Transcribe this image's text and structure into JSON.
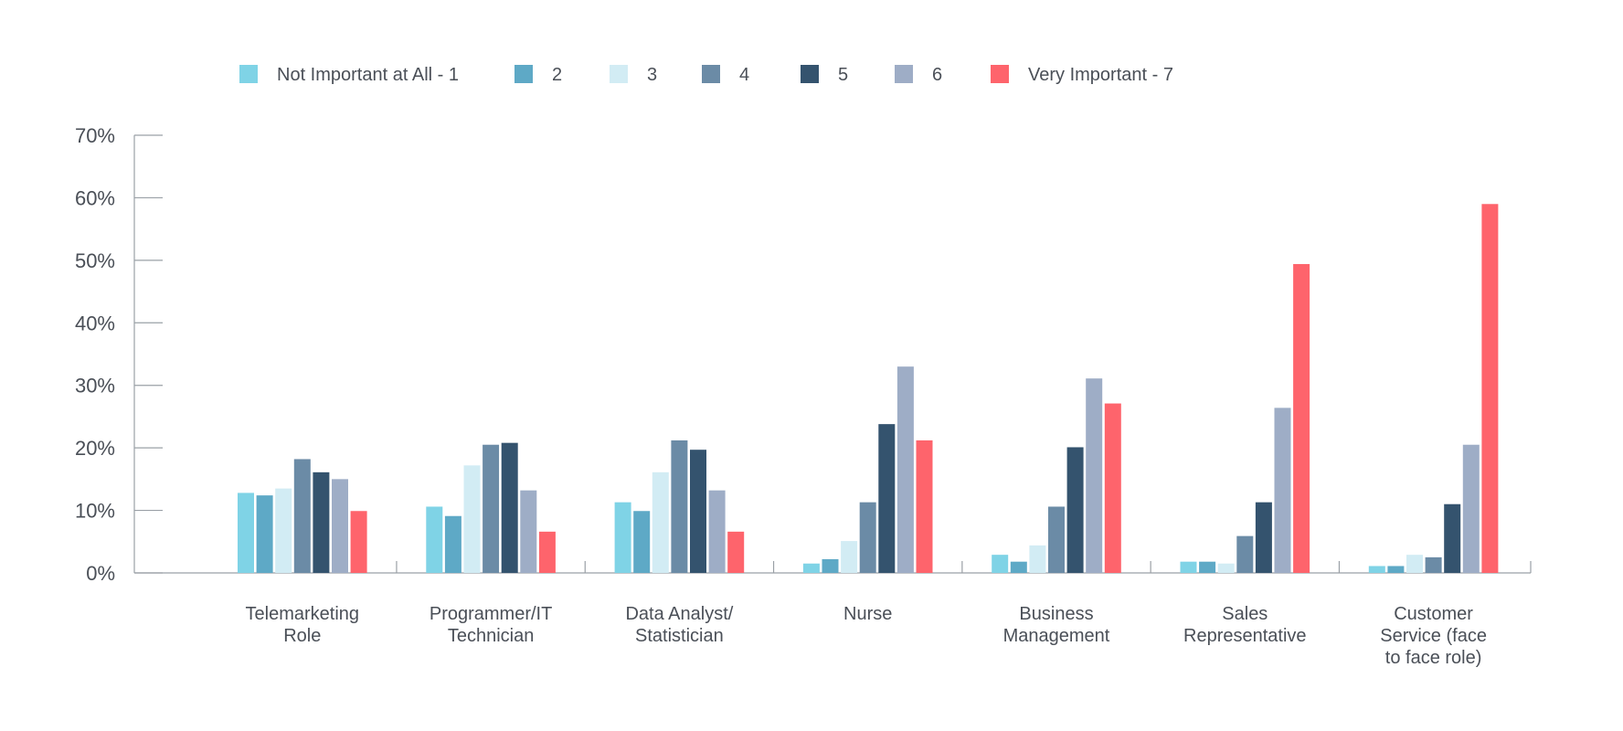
{
  "chart_data": {
    "type": "bar",
    "categories": [
      [
        "Telemarketing",
        "Role"
      ],
      [
        "Programmer/IT",
        "Technician"
      ],
      [
        "Data Analyst/",
        "Statistician"
      ],
      [
        "Nurse"
      ],
      [
        "Business",
        "Management"
      ],
      [
        "Sales",
        "Representative"
      ],
      [
        "Customer",
        "Service (face",
        "to face role)"
      ]
    ],
    "series": [
      {
        "name": "Not Important at All - 1",
        "color": "#7fd3e6",
        "values": [
          12.8,
          10.6,
          11.3,
          1.5,
          2.9,
          1.8,
          1.1
        ]
      },
      {
        "name": "2",
        "color": "#5ea9c6",
        "values": [
          12.4,
          9.1,
          9.9,
          2.2,
          1.8,
          1.8,
          1.1
        ]
      },
      {
        "name": "3",
        "color": "#d2ecf4",
        "values": [
          13.5,
          17.2,
          16.1,
          5.1,
          4.4,
          1.5,
          2.9
        ]
      },
      {
        "name": "4",
        "color": "#6b8ba6",
        "values": [
          18.2,
          20.5,
          21.2,
          11.3,
          10.6,
          5.9,
          2.5
        ]
      },
      {
        "name": "5",
        "color": "#34536e",
        "values": [
          16.1,
          20.8,
          19.7,
          23.8,
          20.1,
          11.3,
          11.0
        ]
      },
      {
        "name": "6",
        "color": "#9eadc6",
        "values": [
          15.0,
          13.2,
          13.2,
          33.0,
          31.1,
          26.4,
          20.5
        ]
      },
      {
        "name": "Very Important - 7",
        "color": "#fe646c",
        "values": [
          9.9,
          6.6,
          6.6,
          21.2,
          27.1,
          49.4,
          59.0
        ]
      }
    ],
    "yticks": [
      "0%",
      "10%",
      "20%",
      "30%",
      "40%",
      "50%",
      "60%",
      "70%"
    ],
    "ylim": [
      0,
      70
    ],
    "legend": "top",
    "grid": false
  }
}
